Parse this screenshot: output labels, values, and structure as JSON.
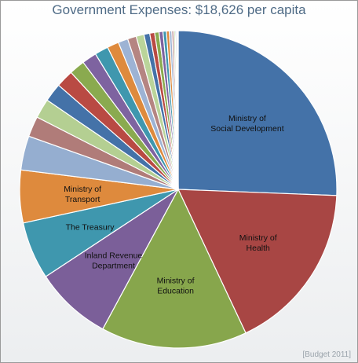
{
  "chart_data": {
    "type": "pie",
    "title": "Government Expenses: $18,626 per capita",
    "source": "[Budget 2011]",
    "start_angle_deg": 0,
    "direction": "clockwise",
    "slices": [
      {
        "label": "Ministry of\nSocial Development",
        "value": 25.8,
        "color": "#4472a8"
      },
      {
        "label": "Ministry of\nHealth",
        "value": 17.5,
        "color": "#a84644"
      },
      {
        "label": "Ministry of\nEducation",
        "value": 15.0,
        "color": "#87a64c"
      },
      {
        "label": "Inland Revenue\nDepartment",
        "value": 7.9,
        "color": "#7b5f99"
      },
      {
        "label": "The Treasury",
        "value": 5.9,
        "color": "#3f97ae"
      },
      {
        "label": "Ministry of\nTransport",
        "value": 5.4,
        "color": "#de8a3d"
      },
      {
        "label": "",
        "value": 3.5,
        "color": "#95aed0"
      },
      {
        "label": "",
        "value": 2.1,
        "color": "#b07c79"
      },
      {
        "label": "",
        "value": 2.0,
        "color": "#b4cf92"
      },
      {
        "label": "",
        "value": 1.9,
        "color": "#4472a8"
      },
      {
        "label": "",
        "value": 1.8,
        "color": "#b94a43"
      },
      {
        "label": "",
        "value": 1.6,
        "color": "#8aaa4f"
      },
      {
        "label": "",
        "value": 1.5,
        "color": "#7e63a0"
      },
      {
        "label": "",
        "value": 1.4,
        "color": "#3f97ae"
      },
      {
        "label": "",
        "value": 1.2,
        "color": "#de8a3d"
      },
      {
        "label": "",
        "value": 1.0,
        "color": "#9db3d4"
      },
      {
        "label": "",
        "value": 0.9,
        "color": "#b58582"
      },
      {
        "label": "",
        "value": 0.8,
        "color": "#bad49a"
      },
      {
        "label": "",
        "value": 0.6,
        "color": "#4472a8"
      },
      {
        "label": "",
        "value": 0.5,
        "color": "#b94a43"
      },
      {
        "label": "",
        "value": 0.45,
        "color": "#8aaa4f"
      },
      {
        "label": "",
        "value": 0.4,
        "color": "#7e63a0"
      },
      {
        "label": "",
        "value": 0.35,
        "color": "#3f97ae"
      },
      {
        "label": "",
        "value": 0.3,
        "color": "#de8a3d"
      },
      {
        "label": "",
        "value": 0.25,
        "color": "#9db3d4"
      },
      {
        "label": "",
        "value": 0.2,
        "color": "#b58582"
      },
      {
        "label": "",
        "value": 0.15,
        "color": "#bad49a"
      },
      {
        "label": "",
        "value": 0.12,
        "color": "#4472a8"
      },
      {
        "label": "",
        "value": 0.1,
        "color": "#b94a43"
      },
      {
        "label": "",
        "value": 0.08,
        "color": "#8aaa4f"
      }
    ]
  }
}
